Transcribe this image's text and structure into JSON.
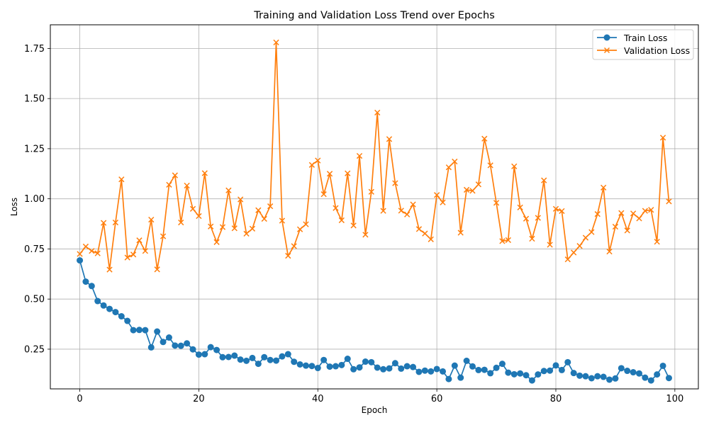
{
  "chart_data": {
    "type": "line",
    "title": "Training and Validation Loss Trend over Epochs",
    "xlabel": "Epoch",
    "ylabel": "Loss",
    "xlim": [
      -4.95,
      103.95
    ],
    "ylim": [
      0.052,
      1.868
    ],
    "xticks": [
      0,
      20,
      40,
      60,
      80,
      100
    ],
    "xtick_labels": [
      "0",
      "20",
      "40",
      "60",
      "80",
      "100"
    ],
    "yticks": [
      0.25,
      0.5,
      0.75,
      1.0,
      1.25,
      1.5,
      1.75
    ],
    "ytick_labels": [
      "0.25",
      "0.50",
      "0.75",
      "1.00",
      "1.25",
      "1.50",
      "1.75"
    ],
    "grid": true,
    "legend_position": "top-right",
    "x": [
      0,
      1,
      2,
      3,
      4,
      5,
      6,
      7,
      8,
      9,
      10,
      11,
      12,
      13,
      14,
      15,
      16,
      17,
      18,
      19,
      20,
      21,
      22,
      23,
      24,
      25,
      26,
      27,
      28,
      29,
      30,
      31,
      32,
      33,
      34,
      35,
      36,
      37,
      38,
      39,
      40,
      41,
      42,
      43,
      44,
      45,
      46,
      47,
      48,
      49,
      50,
      51,
      52,
      53,
      54,
      55,
      56,
      57,
      58,
      59,
      60,
      61,
      62,
      63,
      64,
      65,
      66,
      67,
      68,
      69,
      70,
      71,
      72,
      73,
      74,
      75,
      76,
      77,
      78,
      79,
      80,
      81,
      82,
      83,
      84,
      85,
      86,
      87,
      88,
      89,
      90,
      91,
      92,
      93,
      94,
      95,
      96,
      97,
      98,
      99
    ],
    "series": [
      {
        "name": "Train Loss",
        "color": "#1f77b4",
        "marker": "circle",
        "values": [
          0.693,
          0.587,
          0.565,
          0.49,
          0.468,
          0.451,
          0.435,
          0.414,
          0.391,
          0.345,
          0.346,
          0.345,
          0.259,
          0.338,
          0.286,
          0.308,
          0.268,
          0.267,
          0.279,
          0.249,
          0.223,
          0.225,
          0.26,
          0.246,
          0.21,
          0.211,
          0.218,
          0.198,
          0.192,
          0.206,
          0.177,
          0.21,
          0.196,
          0.193,
          0.214,
          0.225,
          0.187,
          0.174,
          0.168,
          0.166,
          0.156,
          0.196,
          0.163,
          0.165,
          0.171,
          0.202,
          0.15,
          0.159,
          0.188,
          0.185,
          0.158,
          0.15,
          0.154,
          0.18,
          0.153,
          0.165,
          0.161,
          0.137,
          0.143,
          0.139,
          0.151,
          0.139,
          0.101,
          0.168,
          0.108,
          0.192,
          0.164,
          0.146,
          0.147,
          0.13,
          0.157,
          0.177,
          0.133,
          0.125,
          0.129,
          0.12,
          0.094,
          0.124,
          0.141,
          0.143,
          0.169,
          0.146,
          0.185,
          0.131,
          0.118,
          0.115,
          0.105,
          0.115,
          0.112,
          0.098,
          0.104,
          0.155,
          0.142,
          0.135,
          0.129,
          0.108,
          0.094,
          0.124,
          0.167,
          0.106
        ]
      },
      {
        "name": "Validation Loss",
        "color": "#ff7f0e",
        "marker": "x",
        "values": [
          0.725,
          0.762,
          0.74,
          0.728,
          0.88,
          0.647,
          0.882,
          1.097,
          0.707,
          0.722,
          0.793,
          0.74,
          0.896,
          0.648,
          0.813,
          1.07,
          1.117,
          0.882,
          1.066,
          0.95,
          0.914,
          1.128,
          0.862,
          0.784,
          0.859,
          1.042,
          0.853,
          0.997,
          0.826,
          0.851,
          0.943,
          0.9,
          0.963,
          1.78,
          0.891,
          0.716,
          0.764,
          0.848,
          0.873,
          1.169,
          1.191,
          1.023,
          1.125,
          0.954,
          0.893,
          1.127,
          0.867,
          1.214,
          0.821,
          1.035,
          1.43,
          0.94,
          1.298,
          1.078,
          0.941,
          0.922,
          0.972,
          0.849,
          0.827,
          0.798,
          1.019,
          0.982,
          1.157,
          1.186,
          0.831,
          1.045,
          1.04,
          1.072,
          1.3,
          1.167,
          0.98,
          0.789,
          0.794,
          1.162,
          0.957,
          0.901,
          0.801,
          0.905,
          1.092,
          0.771,
          0.95,
          0.939,
          0.698,
          0.732,
          0.765,
          0.806,
          0.834,
          0.924,
          1.056,
          0.737,
          0.861,
          0.929,
          0.842,
          0.927,
          0.902,
          0.94,
          0.945,
          0.786,
          1.305,
          0.987
        ]
      }
    ]
  }
}
